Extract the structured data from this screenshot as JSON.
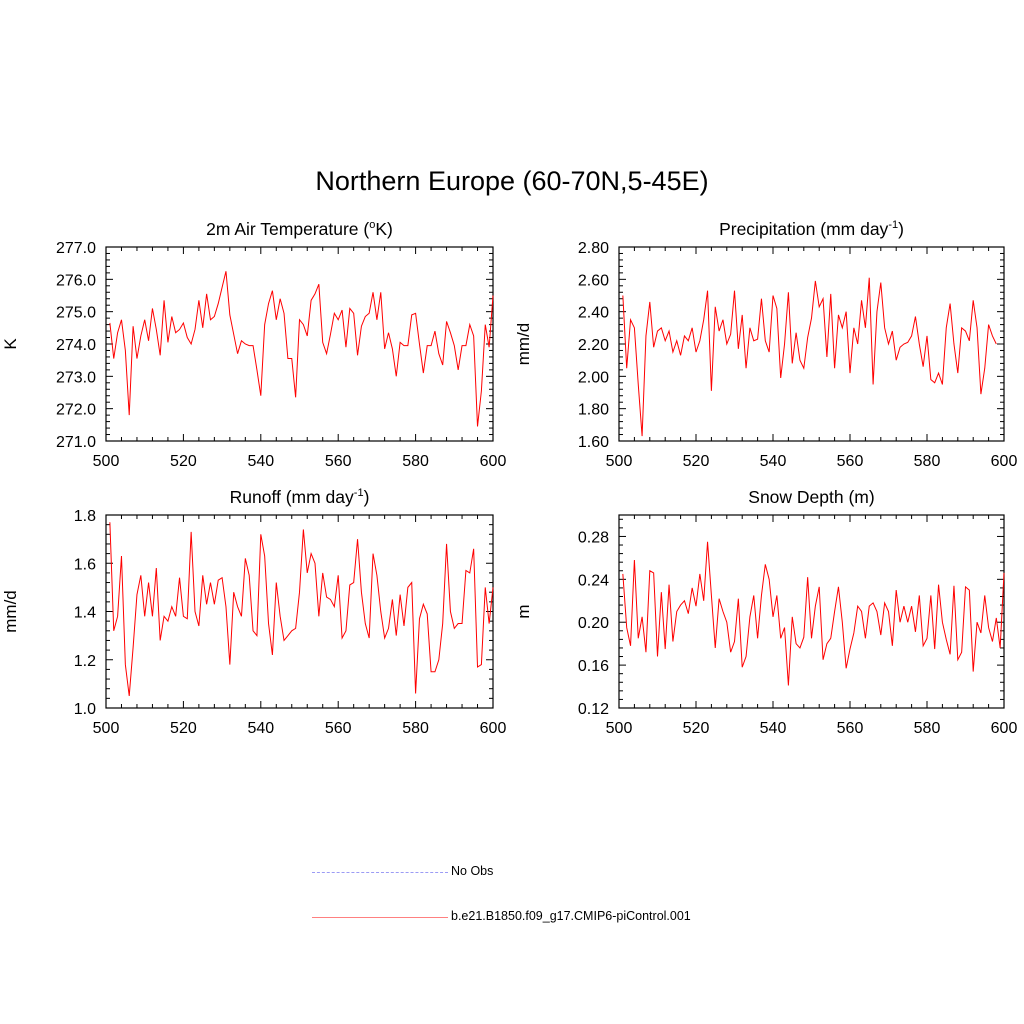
{
  "title": "Northern Europe (60-70N,5-45E)",
  "legend": [
    {
      "label": "No Obs",
      "color": "#9b9bf5",
      "dash": true
    },
    {
      "label": "b.e21.B1850.f09_g17.CMIP6-piControl.001",
      "color": "#ff8080",
      "dash": false
    }
  ],
  "line_color": "#ff0000",
  "chart_data": [
    {
      "type": "line",
      "title": "2m Air Temperature (°K)",
      "title_main": "2m Air Temperature (",
      "title_sup": "o",
      "title_end": "K)",
      "xlabel": "",
      "ylabel": "K",
      "xlim": [
        500,
        600
      ],
      "ylim": [
        271.0,
        277.0
      ],
      "x_ticks": [
        "500",
        "520",
        "540",
        "560",
        "580",
        "600"
      ],
      "y_ticks": [
        "271.0",
        "272.0",
        "273.0",
        "274.0",
        "275.0",
        "276.0",
        "277.0"
      ],
      "x_start": 501,
      "values": [
        274.65,
        273.55,
        274.35,
        274.75,
        273.8,
        271.8,
        274.55,
        273.55,
        274.25,
        274.75,
        274.1,
        275.1,
        274.45,
        273.65,
        275.35,
        274.05,
        274.85,
        274.35,
        274.45,
        274.65,
        274.2,
        274.0,
        274.45,
        275.35,
        274.5,
        275.55,
        274.75,
        274.85,
        275.25,
        275.75,
        276.25,
        274.9,
        274.3,
        273.7,
        274.1,
        274.0,
        273.95,
        273.95,
        273.2,
        272.4,
        274.6,
        275.25,
        275.65,
        274.75,
        275.4,
        274.95,
        273.55,
        273.55,
        272.35,
        274.75,
        274.6,
        274.25,
        275.35,
        275.55,
        275.85,
        274.05,
        273.7,
        274.3,
        274.95,
        274.75,
        275.05,
        273.9,
        275.1,
        274.95,
        273.65,
        274.55,
        274.85,
        274.95,
        275.6,
        274.75,
        275.6,
        273.85,
        274.35,
        273.85,
        273.0,
        274.05,
        273.95,
        273.95,
        274.9,
        274.95,
        274.0,
        273.1,
        273.95,
        273.95,
        274.4,
        273.7,
        273.35,
        274.7,
        274.35,
        273.95,
        273.2,
        273.95,
        273.95,
        274.6,
        274.25,
        271.45,
        272.55,
        274.6,
        273.9,
        275.5
      ]
    },
    {
      "type": "line",
      "title": "Precipitation (mm day-1)",
      "title_main": "Precipitation (mm day",
      "title_sup": "-1",
      "title_end": ")",
      "xlabel": "",
      "ylabel": "mm/d",
      "xlim": [
        500,
        600
      ],
      "ylim": [
        1.6,
        2.8
      ],
      "x_ticks": [
        "500",
        "520",
        "540",
        "560",
        "580",
        "600"
      ],
      "y_ticks": [
        "1.60",
        "1.80",
        "2.00",
        "2.20",
        "2.40",
        "2.60",
        "2.80"
      ],
      "x_start": 501,
      "values": [
        2.5,
        2.05,
        2.35,
        2.3,
        1.95,
        1.63,
        2.25,
        2.46,
        2.18,
        2.28,
        2.3,
        2.22,
        2.28,
        2.15,
        2.22,
        2.13,
        2.25,
        2.22,
        2.3,
        2.15,
        2.22,
        2.35,
        2.53,
        1.91,
        2.43,
        2.28,
        2.35,
        2.2,
        2.26,
        2.53,
        2.17,
        2.38,
        2.05,
        2.3,
        2.22,
        2.23,
        2.48,
        2.22,
        2.15,
        2.5,
        2.42,
        1.99,
        2.2,
        2.52,
        2.08,
        2.27,
        2.1,
        2.05,
        2.24,
        2.36,
        2.59,
        2.43,
        2.48,
        2.12,
        2.51,
        2.05,
        2.38,
        2.3,
        2.4,
        2.02,
        2.3,
        2.2,
        2.47,
        2.3,
        2.61,
        1.95,
        2.4,
        2.58,
        2.3,
        2.2,
        2.28,
        2.1,
        2.18,
        2.2,
        2.21,
        2.25,
        2.37,
        2.2,
        2.06,
        2.25,
        1.98,
        1.96,
        2.02,
        1.95,
        2.3,
        2.45,
        2.2,
        2.02,
        2.3,
        2.28,
        2.22,
        2.47,
        2.3,
        1.89,
        2.05,
        2.32,
        2.25,
        2.2
      ]
    },
    {
      "type": "line",
      "title": "Runoff (mm day-1)",
      "title_main": "Runoff (mm day",
      "title_sup": "-1",
      "title_end": ")",
      "xlabel": "",
      "ylabel": "mm/d",
      "xlim": [
        500,
        600
      ],
      "ylim": [
        1.0,
        1.8
      ],
      "x_ticks": [
        "500",
        "520",
        "540",
        "560",
        "580",
        "600"
      ],
      "y_ticks": [
        "1.0",
        "1.2",
        "1.4",
        "1.6",
        "1.8"
      ],
      "x_start": 501,
      "values": [
        1.77,
        1.32,
        1.38,
        1.63,
        1.18,
        1.05,
        1.25,
        1.47,
        1.55,
        1.38,
        1.52,
        1.38,
        1.58,
        1.28,
        1.38,
        1.36,
        1.42,
        1.38,
        1.54,
        1.38,
        1.37,
        1.73,
        1.4,
        1.34,
        1.55,
        1.43,
        1.52,
        1.43,
        1.53,
        1.54,
        1.42,
        1.18,
        1.48,
        1.42,
        1.38,
        1.62,
        1.55,
        1.32,
        1.3,
        1.72,
        1.63,
        1.35,
        1.22,
        1.52,
        1.38,
        1.28,
        1.3,
        1.32,
        1.33,
        1.48,
        1.74,
        1.56,
        1.64,
        1.6,
        1.38,
        1.56,
        1.46,
        1.45,
        1.42,
        1.55,
        1.29,
        1.32,
        1.51,
        1.52,
        1.7,
        1.48,
        1.35,
        1.29,
        1.64,
        1.55,
        1.4,
        1.29,
        1.33,
        1.45,
        1.3,
        1.47,
        1.34,
        1.5,
        1.52,
        1.06,
        1.37,
        1.43,
        1.39,
        1.15,
        1.15,
        1.2,
        1.35,
        1.68,
        1.4,
        1.33,
        1.35,
        1.35,
        1.57,
        1.56,
        1.66,
        1.17,
        1.18,
        1.5,
        1.35,
        1.5
      ]
    },
    {
      "type": "line",
      "title": "Snow Depth (m)",
      "title_main": "Snow Depth (m)",
      "title_sup": "",
      "title_end": "",
      "xlabel": "",
      "ylabel": "m",
      "xlim": [
        500,
        600
      ],
      "ylim": [
        0.12,
        0.3
      ],
      "x_ticks": [
        "500",
        "520",
        "540",
        "560",
        "580",
        "600"
      ],
      "y_ticks": [
        "0.12",
        "0.16",
        "0.20",
        "0.24",
        "0.28"
      ],
      "x_start": 501,
      "values": [
        0.245,
        0.195,
        0.178,
        0.258,
        0.185,
        0.205,
        0.172,
        0.248,
        0.246,
        0.168,
        0.228,
        0.175,
        0.235,
        0.182,
        0.21,
        0.216,
        0.22,
        0.208,
        0.232,
        0.215,
        0.245,
        0.22,
        0.275,
        0.225,
        0.176,
        0.222,
        0.21,
        0.2,
        0.172,
        0.182,
        0.222,
        0.158,
        0.168,
        0.205,
        0.225,
        0.185,
        0.225,
        0.254,
        0.24,
        0.205,
        0.225,
        0.185,
        0.195,
        0.141,
        0.205,
        0.18,
        0.176,
        0.186,
        0.242,
        0.185,
        0.215,
        0.233,
        0.165,
        0.18,
        0.185,
        0.21,
        0.233,
        0.2,
        0.157,
        0.175,
        0.19,
        0.215,
        0.21,
        0.185,
        0.215,
        0.218,
        0.21,
        0.188,
        0.218,
        0.21,
        0.178,
        0.23,
        0.2,
        0.215,
        0.2,
        0.215,
        0.191,
        0.225,
        0.178,
        0.185,
        0.225,
        0.175,
        0.235,
        0.2,
        0.184,
        0.17,
        0.234,
        0.165,
        0.172,
        0.233,
        0.23,
        0.154,
        0.2,
        0.19,
        0.225,
        0.195,
        0.182,
        0.204,
        0.176,
        0.246
      ]
    }
  ]
}
